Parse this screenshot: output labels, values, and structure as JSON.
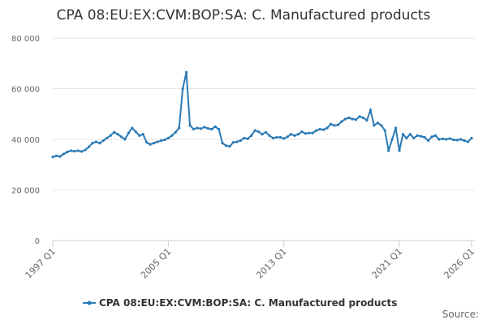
{
  "chart_data": {
    "type": "line",
    "title": "CPA 08:EU:EX:CVM:BOP:SA: C. Manufactured products",
    "source": "Source:",
    "categories": [
      "1997 Q1",
      null,
      null,
      null,
      null,
      null,
      null,
      null,
      null,
      null,
      null,
      null,
      null,
      null,
      null,
      null,
      null,
      null,
      null,
      null,
      null,
      null,
      null,
      null,
      null,
      null,
      null,
      null,
      null,
      null,
      null,
      null,
      "2005 Q1",
      null,
      null,
      null,
      null,
      null,
      null,
      null,
      null,
      null,
      null,
      null,
      null,
      null,
      null,
      null,
      null,
      null,
      null,
      null,
      null,
      null,
      null,
      null,
      null,
      null,
      null,
      null,
      null,
      null,
      null,
      null,
      "2013 Q1",
      null,
      null,
      null,
      null,
      null,
      null,
      null,
      null,
      null,
      null,
      null,
      null,
      null,
      null,
      null,
      null,
      null,
      null,
      null,
      null,
      null,
      null,
      null,
      null,
      null,
      null,
      null,
      null,
      null,
      null,
      null,
      "2021 Q1",
      null,
      null,
      null,
      null,
      null,
      null,
      null,
      null,
      null,
      null,
      null,
      null,
      null,
      null,
      null,
      null,
      null,
      null,
      null,
      "2026 Q1"
    ],
    "series": [
      {
        "name": "CPA 08:EU:EX:CVM:BOP:SA: C. Manufactured products",
        "color": "#2a7ab5",
        "values": [
          33000,
          33500,
          33200,
          34200,
          35000,
          35500,
          35300,
          35500,
          35200,
          35800,
          37000,
          38500,
          39000,
          38500,
          39500,
          40500,
          41500,
          42800,
          42000,
          41000,
          40000,
          42500,
          44500,
          43000,
          41500,
          42000,
          38800,
          38000,
          38500,
          39000,
          39500,
          39800,
          40500,
          41500,
          42800,
          44500,
          60000,
          66500,
          45500,
          44000,
          44500,
          44200,
          44800,
          44300,
          44000,
          45000,
          44000,
          38500,
          37500,
          37200,
          38800,
          39000,
          39500,
          40500,
          40200,
          41500,
          43500,
          43000,
          42000,
          42800,
          41500,
          40500,
          40800,
          40800,
          40300,
          41000,
          42000,
          41500,
          42000,
          43000,
          42300,
          42500,
          42500,
          43500,
          44000,
          43800,
          44500,
          46000,
          45500,
          45700,
          47000,
          48000,
          48500,
          48000,
          47800,
          49000,
          48500,
          47500,
          51500,
          45500,
          46500,
          45500,
          43500,
          35500,
          40000,
          44500,
          35500,
          42000,
          40500,
          42000,
          40500,
          41500,
          41200,
          40800,
          39500,
          41000,
          41500,
          40000,
          40200,
          40000,
          40300,
          39800,
          39700,
          40000,
          39500,
          39000,
          40500
        ]
      }
    ],
    "ylim": [
      0,
      80000
    ],
    "yticks": [
      0,
      {
        "value": 20000,
        "label": "20 000"
      },
      {
        "value": 40000,
        "label": "40 000"
      },
      {
        "value": 60000,
        "label": "60 000"
      },
      {
        "value": 80000,
        "label": "80 000"
      }
    ],
    "grid": true
  }
}
